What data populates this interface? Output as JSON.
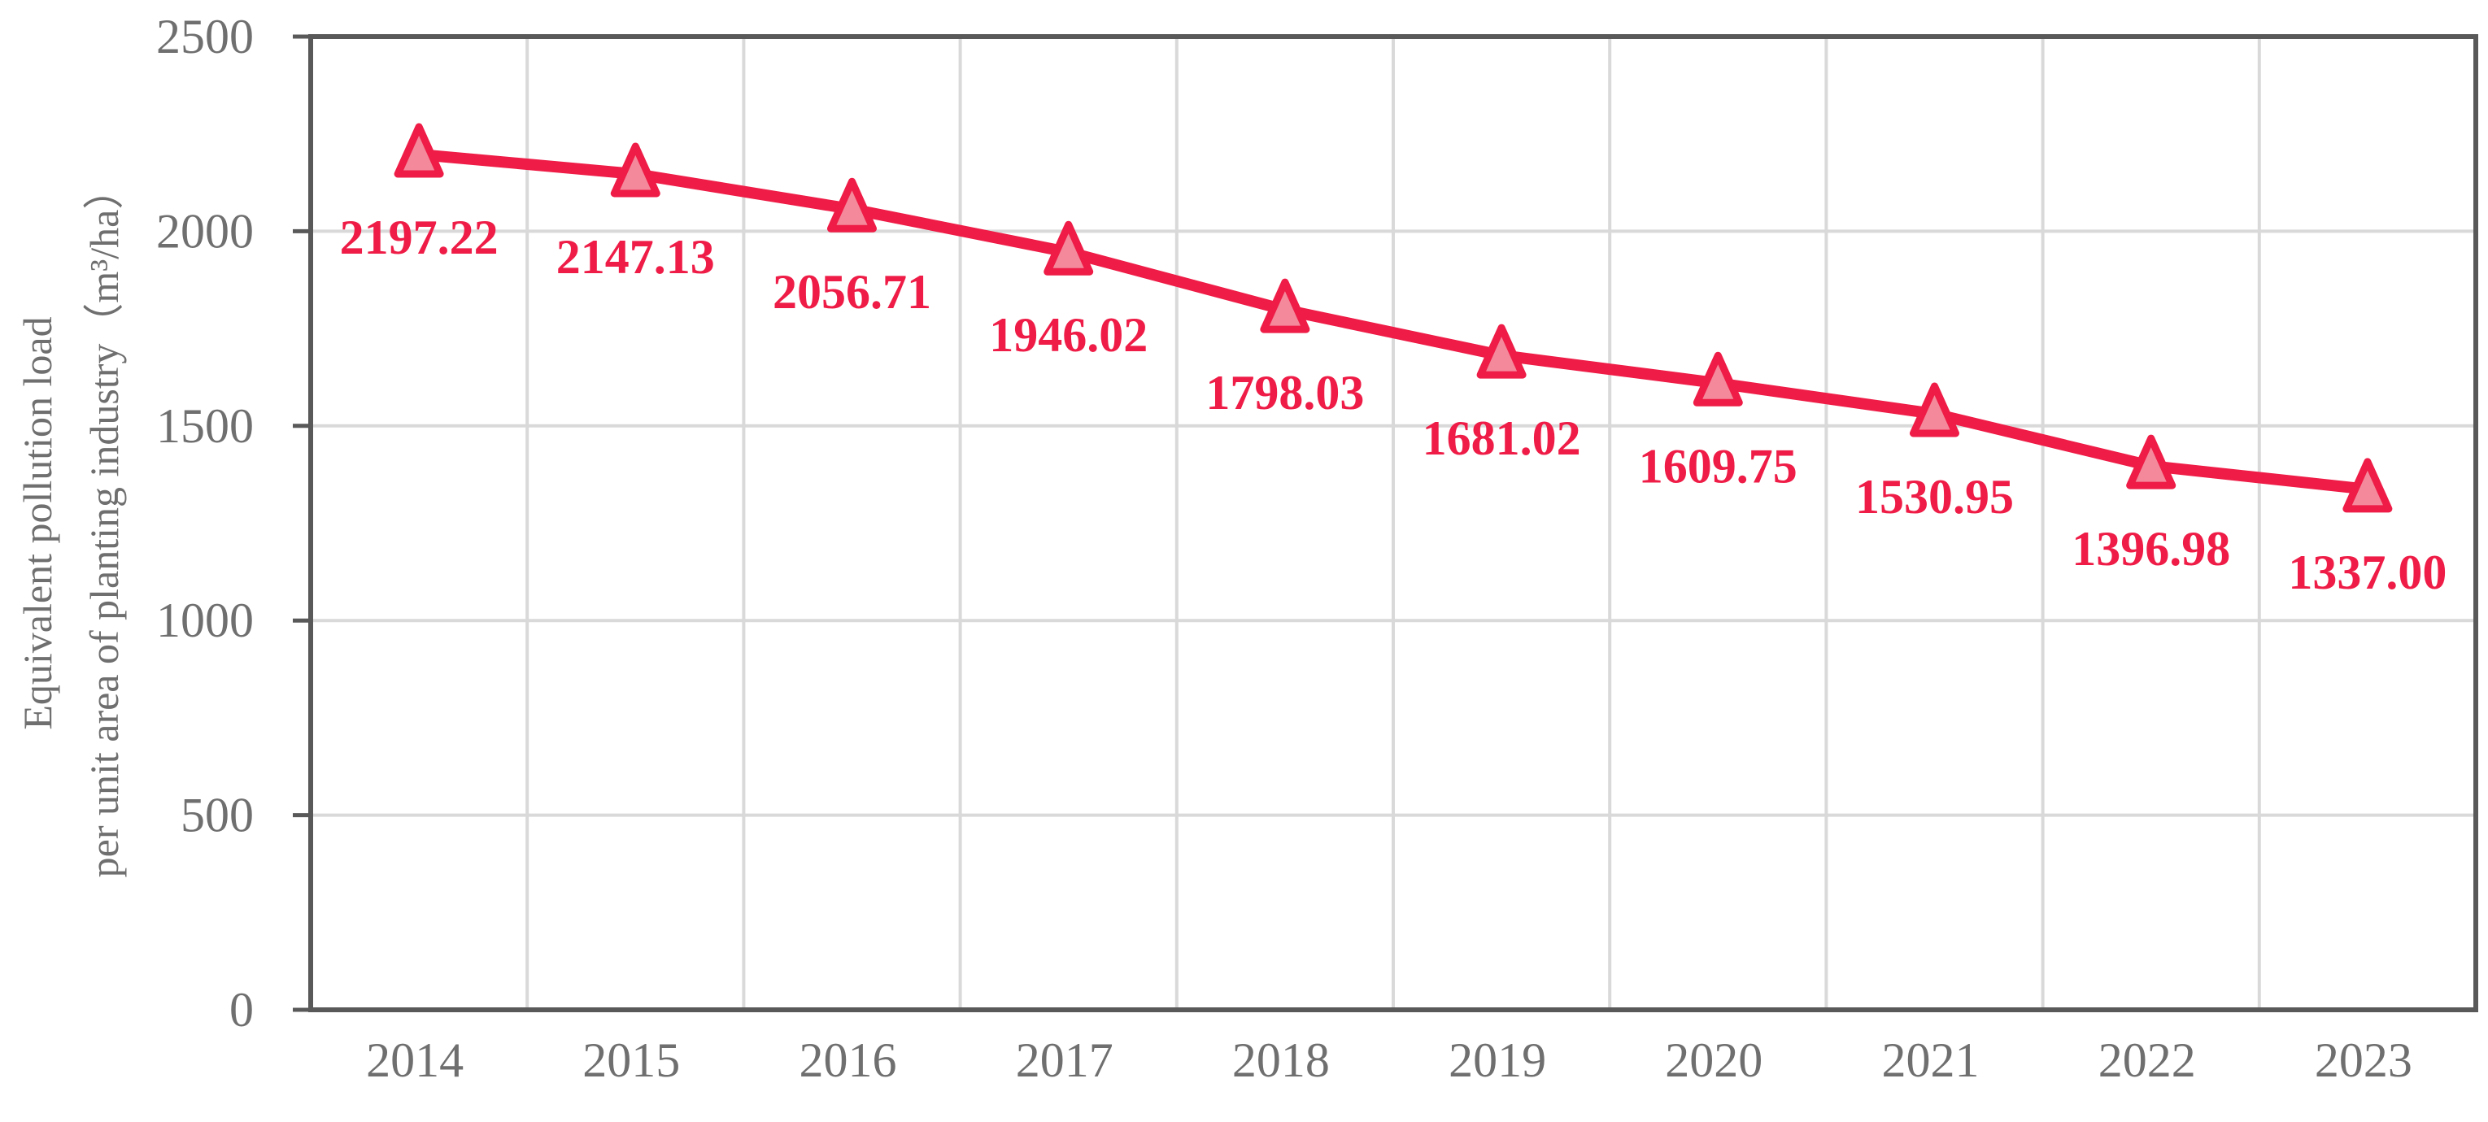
{
  "chart_data": {
    "type": "line",
    "title": "",
    "xlabel": "",
    "ylabel_lines": [
      "Equivalent pollution load",
      "per unit area of planting industry（m³/ha）"
    ],
    "categories": [
      "2014",
      "2015",
      "2016",
      "2017",
      "2018",
      "2019",
      "2020",
      "2021",
      "2022",
      "2023"
    ],
    "series": [
      {
        "values": [
          2197.22,
          2147.13,
          2056.71,
          1946.02,
          1798.03,
          1681.02,
          1609.75,
          1530.95,
          1396.98,
          1337.0
        ],
        "labels": [
          "2197.22",
          "2147.13",
          "2056.71",
          "1946.02",
          "1798.03",
          "1681.02",
          "1609.75",
          "1530.95",
          "1396.98",
          "1337.00"
        ],
        "color": "#ee1c46",
        "marker_fill": "#f4899c",
        "marker": "triangle"
      }
    ],
    "ylim": [
      0,
      2500
    ],
    "yticks": [
      "0",
      "500",
      "1000",
      "1500",
      "2000",
      "2500"
    ],
    "grid": true,
    "legend": "none"
  }
}
